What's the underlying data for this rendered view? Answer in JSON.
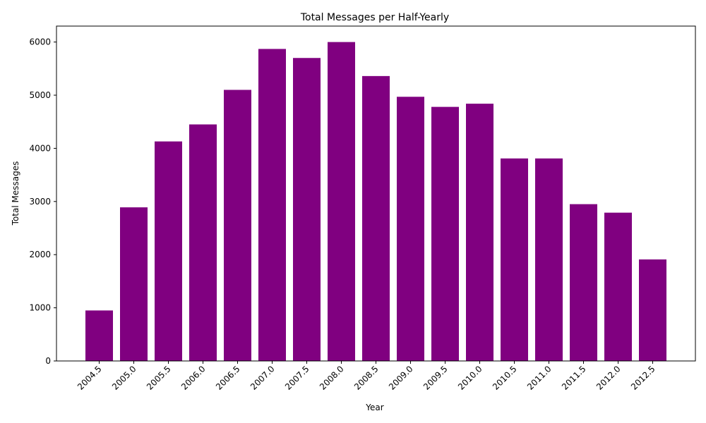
{
  "chart_data": {
    "type": "bar",
    "title": "Total Messages per Half-Yearly",
    "xlabel": "Year",
    "ylabel": "Total Messages",
    "categories": [
      "2004.5",
      "2005.0",
      "2005.5",
      "2006.0",
      "2006.5",
      "2007.0",
      "2007.5",
      "2008.0",
      "2008.5",
      "2009.0",
      "2009.5",
      "2010.0",
      "2010.5",
      "2011.0",
      "2011.5",
      "2012.0",
      "2012.5"
    ],
    "values": [
      950,
      2890,
      4130,
      4450,
      5100,
      5870,
      5700,
      6000,
      5360,
      4970,
      4780,
      4840,
      3810,
      3810,
      2950,
      2790,
      1910
    ],
    "ylim": [
      0,
      6300
    ],
    "yticks": [
      0,
      1000,
      2000,
      3000,
      4000,
      5000,
      6000
    ],
    "bar_color": "#800080",
    "grid": false,
    "legend": "none"
  }
}
